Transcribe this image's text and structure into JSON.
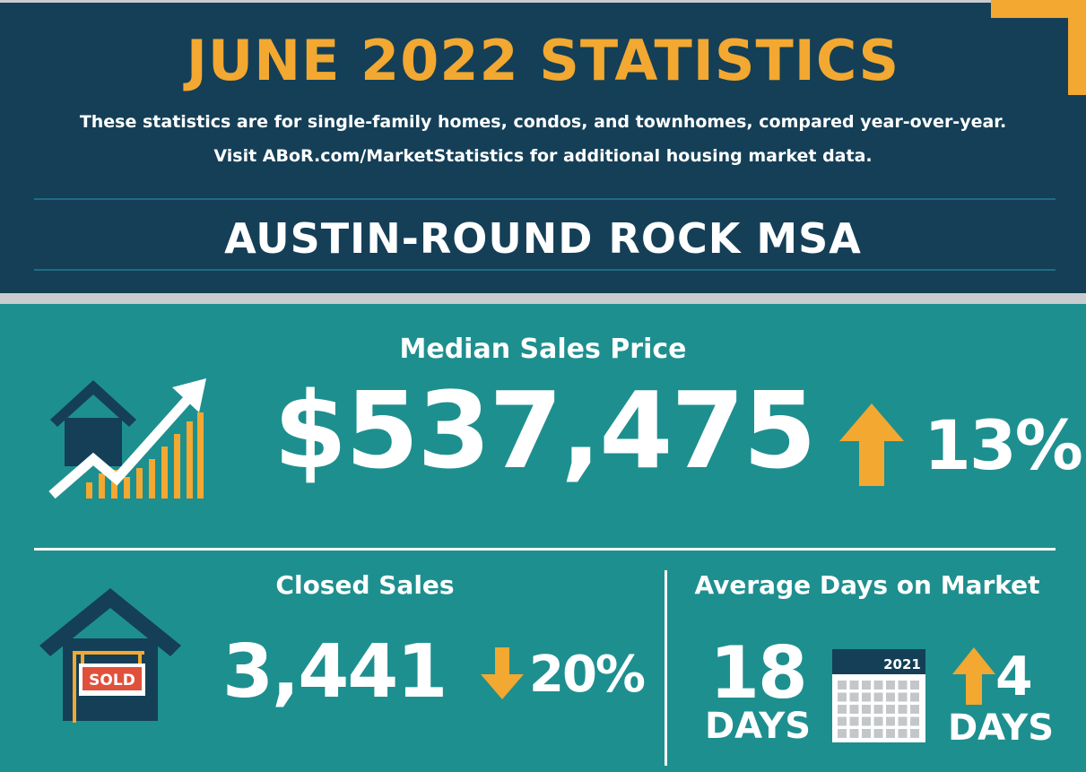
{
  "header": {
    "title": "JUNE 2022 STATISTICS",
    "subtitle_line1": "These statistics are for single-family homes, condos, and townhomes, compared year-over-year.",
    "subtitle_line2": "Visit ABoR.com/MarketStatistics for additional housing market data.",
    "region": "AUSTIN-ROUND ROCK MSA"
  },
  "median_price": {
    "label": "Median Sales Price",
    "value": "$537,475",
    "change": "13%",
    "direction": "up",
    "icon": "house-growth-chart-icon"
  },
  "closed_sales": {
    "label": "Closed Sales",
    "value": "3,441",
    "change": "20%",
    "direction": "down",
    "icon": "sold-house-icon",
    "sign_text": "SOLD"
  },
  "days_on_market": {
    "label": "Average Days on Market",
    "value": "18",
    "unit": "DAYS",
    "calendar_year": "2021",
    "change": "4",
    "change_unit": "DAYS",
    "direction": "up",
    "icon": "calendar-icon"
  },
  "colors": {
    "navy": "#143f57",
    "teal": "#1e8f8f",
    "orange": "#f2a831",
    "white": "#ffffff",
    "sign_red": "#e0513b"
  }
}
